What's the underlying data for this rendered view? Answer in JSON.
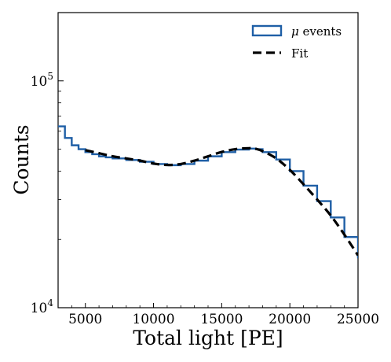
{
  "chart_data": {
    "type": "line",
    "title": "",
    "xlabel": "Total light [PE]",
    "ylabel": "Counts",
    "xlim": [
      3000,
      25000
    ],
    "ylim": [
      10000,
      200000
    ],
    "yscale": "log",
    "grid": false,
    "legend_position": "top-right",
    "x_ticks": [
      5000,
      10000,
      15000,
      20000,
      25000
    ],
    "x_tick_labels": [
      "5000",
      "10000",
      "15000",
      "20000",
      "25000"
    ],
    "y_ticks": [
      10000,
      100000
    ],
    "y_tick_labels": [
      {
        "base": "10",
        "exp": "4"
      },
      {
        "base": "10",
        "exp": "5"
      }
    ],
    "series": [
      {
        "name": "μ events",
        "legend_prefix": "μ",
        "legend_suffix": " events",
        "style": "step",
        "color": "#1f5fa6",
        "x": [
          3000,
          3500,
          4000,
          4500,
          5000,
          5500,
          6000,
          6500,
          7000,
          8000,
          9000,
          10000,
          11000,
          12000,
          13000,
          14000,
          15000,
          16000,
          17000,
          17500,
          18000,
          19000,
          20000,
          21000,
          22000,
          23000,
          24000,
          25000
        ],
        "y": [
          63000,
          56000,
          52000,
          50000,
          48500,
          47500,
          46500,
          46000,
          45500,
          44800,
          44000,
          43000,
          42500,
          43000,
          44500,
          46500,
          48500,
          49800,
          50300,
          50000,
          48500,
          45000,
          40000,
          34500,
          29500,
          25000,
          20500,
          16500
        ]
      },
      {
        "name": "Fit",
        "style": "dashed",
        "color": "#000000",
        "x": [
          5000,
          6000,
          7000,
          8000,
          9000,
          10000,
          11000,
          12000,
          13000,
          14000,
          15000,
          16000,
          17000,
          17500,
          18000,
          19000,
          20000,
          21000,
          22000,
          23000,
          24000,
          25000
        ],
        "y": [
          49500,
          48000,
          46500,
          45500,
          44500,
          43200,
          42600,
          43000,
          44500,
          46500,
          48600,
          50000,
          50500,
          50200,
          49000,
          45500,
          40500,
          35000,
          30000,
          25500,
          21000,
          17000
        ]
      }
    ]
  }
}
